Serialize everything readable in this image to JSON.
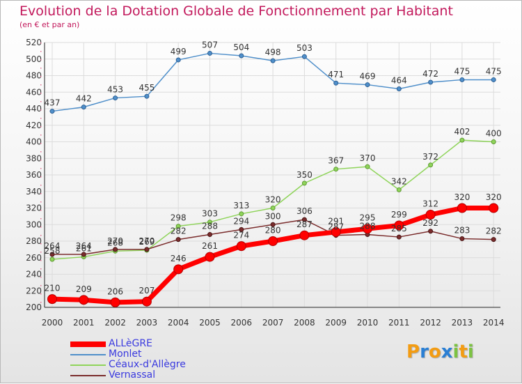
{
  "title": "Evolution de la Dotation Globale de Fonctionnement par Habitant",
  "subtitle": "(en € et par an)",
  "logo": {
    "letters": [
      "P",
      "r",
      "o",
      "x",
      "i",
      "t",
      "i"
    ],
    "colors": [
      "#f39c12",
      "#2a7fd4",
      "#f39c12",
      "#2a7fd4",
      "#7cc242",
      "#f39c12",
      "#7cc242"
    ]
  },
  "chart_data": {
    "type": "line",
    "x": [
      2000,
      2001,
      2002,
      2003,
      2004,
      2005,
      2006,
      2007,
      2008,
      2009,
      2010,
      2011,
      2012,
      2013,
      2014
    ],
    "ylim": [
      200,
      520
    ],
    "yticks": [
      200,
      220,
      240,
      260,
      280,
      300,
      320,
      340,
      360,
      380,
      400,
      420,
      440,
      460,
      480,
      500,
      520
    ],
    "grid": true,
    "legend_position": "bottom-left",
    "series": [
      {
        "name": "Monlet",
        "color": "#4f8fca",
        "values": [
          437,
          442,
          453,
          455,
          499,
          507,
          504,
          498,
          503,
          471,
          469,
          464,
          472,
          475,
          475
        ]
      },
      {
        "name": "Céaux-d'Allègre",
        "color": "#8fd45a",
        "values": [
          258,
          261,
          268,
          269,
          298,
          303,
          313,
          320,
          350,
          367,
          370,
          342,
          372,
          402,
          400
        ]
      },
      {
        "name": "Vernassal",
        "color": "#7a2c2c",
        "values": [
          264,
          264,
          270,
          270,
          282,
          288,
          294,
          300,
          306,
          287,
          288,
          285,
          292,
          283,
          282
        ]
      },
      {
        "name": "ALLèGRE",
        "color": "#ff0000",
        "values": [
          210,
          209,
          206,
          207,
          246,
          261,
          274,
          280,
          287,
          291,
          295,
          299,
          312,
          320,
          320
        ]
      }
    ],
    "legend_order": [
      "ALLèGRE",
      "Monlet",
      "Céaux-d'Allègre",
      "Vernassal"
    ]
  }
}
